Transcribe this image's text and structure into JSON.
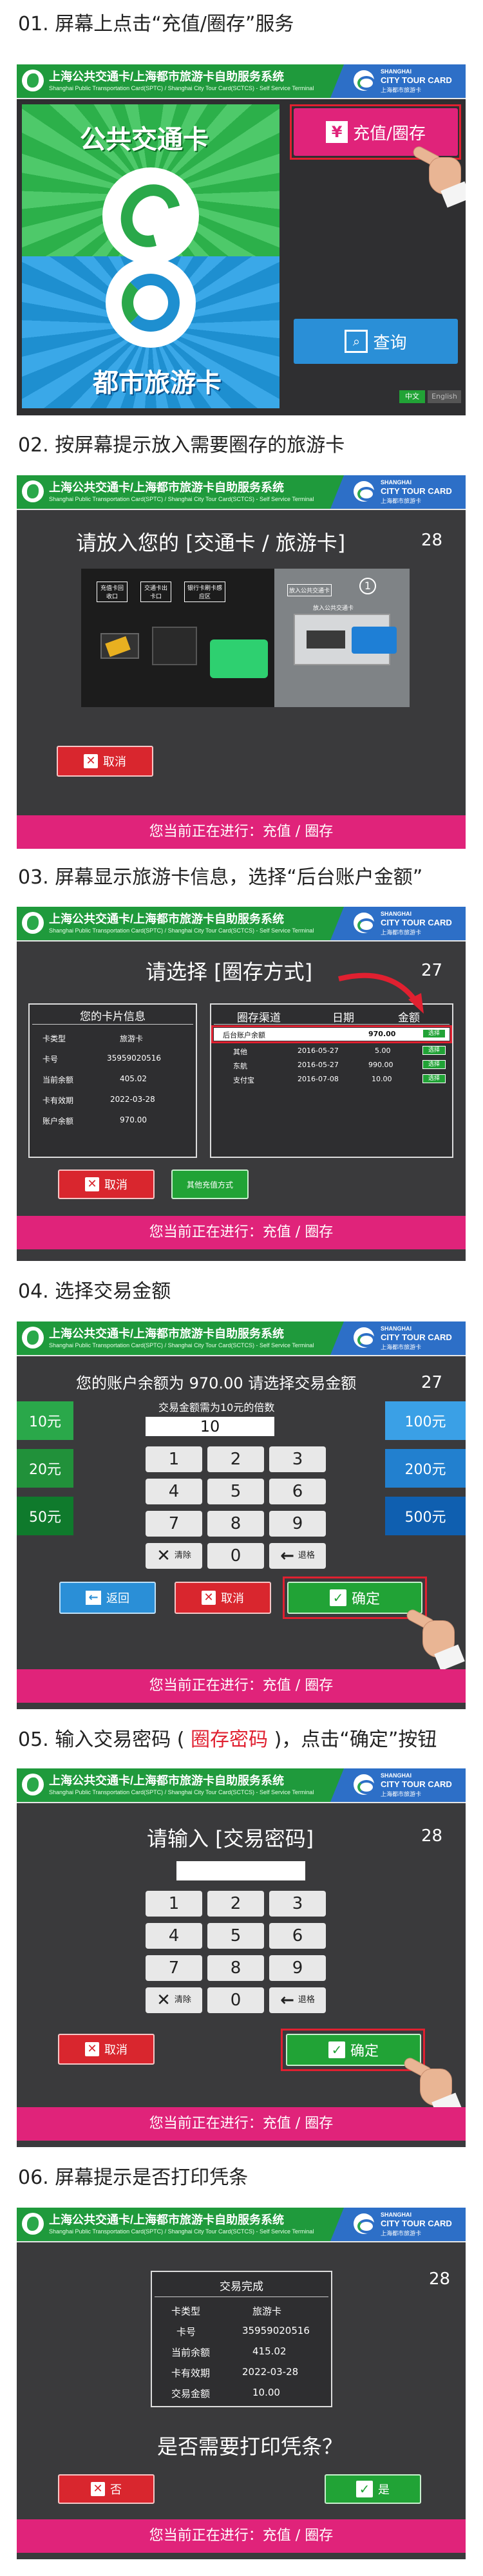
{
  "header": {
    "title": "上海公共交通卡/上海都市旅游卡自助服务系统",
    "subtitle": "Shanghai Public Transportation Card(SPTC) / Shanghai City Tour Card(SCTCS) - Self Service Terminal",
    "brand_line1": "SHANGHAI",
    "brand_line2": "CITY TOUR CARD",
    "brand_line3": "上海都市旅游卡"
  },
  "status_bar": "您当前正在进行：充值 / 圈存",
  "s1": {
    "title": "01. 屏幕上点击“充值/圈存”服务",
    "card_top": "公共交通卡",
    "card_bottom": "都市旅游卡",
    "topup_button": "充值/圈存",
    "topup_icon": "¥",
    "query_button": "查询",
    "lang_cn": "中文",
    "lang_en": "English"
  },
  "s2": {
    "title": "02. 按屏幕提示放入需要圈存的旅游卡",
    "prompt": "请放入您的 [交通卡 / 旅游卡]",
    "countdown": "28",
    "slot1": "充值卡回收口",
    "slot2": "交通卡出卡口",
    "slot3": "银行卡刷卡感应区",
    "slot4": "放入公共交通卡",
    "step_num": "1",
    "insert_label": "放入公共交通卡",
    "cancel": "取消"
  },
  "s3": {
    "title": "03. 屏幕显示旅游卡信息，选择“后台账户金额”",
    "prompt": "请选择 [圈存方式]",
    "countdown": "27",
    "card_info_title": "您的卡片信息",
    "card_info": [
      {
        "label": "卡类型",
        "value": "旅游卡"
      },
      {
        "label": "卡号",
        "value": "35959020516"
      },
      {
        "label": "当前余额",
        "value": "405.02"
      },
      {
        "label": "卡有效期",
        "value": "2022-03-28"
      },
      {
        "label": "账户余额",
        "value": "970.00"
      }
    ],
    "col_channel": "圈存渠道",
    "col_date": "日期",
    "col_amount": "金额",
    "rows": [
      {
        "channel": "后台账户余额",
        "date": "",
        "amount": "970.00",
        "select": "选择"
      },
      {
        "channel": "其他",
        "date": "2016-05-27",
        "amount": "5.00",
        "select": "选择"
      },
      {
        "channel": "东航",
        "date": "2016-05-27",
        "amount": "990.00",
        "select": "选择"
      },
      {
        "channel": "支付宝",
        "date": "2016-07-08",
        "amount": "10.00",
        "select": "选择"
      }
    ],
    "cancel": "取消",
    "other_methods": "其他充值方式"
  },
  "s4": {
    "title": "04. 选择交易金额",
    "prompt": "您的账户余额为 970.00 请选择交易金额",
    "countdown": "27",
    "hint": "交易金额需为10元的倍数",
    "amount_value": "10",
    "presets_left": [
      "10元",
      "20元",
      "50元"
    ],
    "presets_right": [
      "100元",
      "200元",
      "500元"
    ],
    "keys": [
      "1",
      "2",
      "3",
      "4",
      "5",
      "6",
      "7",
      "8",
      "9"
    ],
    "key_zero": "0",
    "key_clear": "清除",
    "key_back": "退格",
    "back_button": "返回",
    "cancel": "取消",
    "confirm": "确定"
  },
  "s5": {
    "title_pre": "05. 输入交易密码 ( ",
    "title_red": "圈存密码",
    "title_post": " )，点击“确定”按钮",
    "prompt": "请输入 [交易密码]",
    "countdown": "28",
    "keys": [
      "1",
      "2",
      "3",
      "4",
      "5",
      "6",
      "7",
      "8",
      "9"
    ],
    "key_zero": "0",
    "key_clear": "清除",
    "key_back": "退格",
    "cancel": "取消",
    "confirm": "确定"
  },
  "s6": {
    "title": "06. 屏幕提示是否打印凭条",
    "countdown": "28",
    "receipt_title": "交易完成",
    "receipt": [
      {
        "label": "卡类型",
        "value": "旅游卡"
      },
      {
        "label": "卡号",
        "value": "35959020516"
      },
      {
        "label": "当前余额",
        "value": "415.02"
      },
      {
        "label": "卡有效期",
        "value": "2022-03-28"
      },
      {
        "label": "交易金额",
        "value": "10.00"
      }
    ],
    "question": "是否需要打印凭条？",
    "no": "否",
    "yes": "是"
  },
  "colors": {
    "header_green": "#1f9a3c",
    "status_magenta": "#e0237a",
    "button_red": "#d9262e",
    "button_green": "#21a336",
    "button_blue": "#2a8fd7"
  }
}
